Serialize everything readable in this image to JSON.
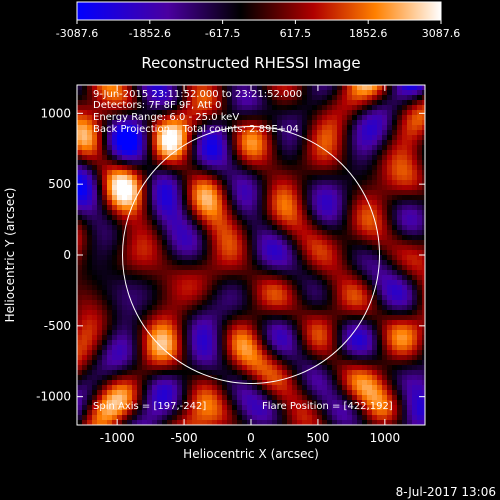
{
  "chart_data": {
    "type": "heatmap",
    "title": "Reconstructed RHESSI Image",
    "xlabel": "Heliocentric X (arcsec)",
    "ylabel": "Heliocentric Y (arcsec)",
    "xlim": [
      -1300,
      1300
    ],
    "ylim": [
      -1200,
      1200
    ],
    "xticks": [
      -1000,
      -500,
      0,
      500,
      1000
    ],
    "xtick_labels": [
      "-1000",
      "-500",
      "0",
      "500",
      "1000"
    ],
    "yticks": [
      -1000,
      -500,
      0,
      500,
      1000
    ],
    "ytick_labels": [
      "-1000",
      "-500",
      "0",
      "500",
      "1000"
    ],
    "colorbar": {
      "range": [
        -3087.6,
        3087.6
      ],
      "ticks": [
        -3087.6,
        -1852.6,
        -617.5,
        617.5,
        1852.6,
        3087.6
      ],
      "tick_labels": [
        "-3087.6",
        "-1852.6",
        "-617.5",
        "617.5",
        "1852.6",
        "3087.6"
      ]
    },
    "annotations": {
      "time_range": "9-Jun-2015 23:11:52.000 to 23:21:52.000",
      "detectors": "Detectors: 7F 8F 9F, Att 0",
      "energy_range": "Energy Range: 6.0 - 25.0 keV",
      "method_and_counts": "Back Projection    Total counts: 2.89E+04",
      "spin_axis": "Spin Axis = [197,-242]",
      "flare_position": "Flare Position = [422,192]"
    },
    "limb_circle": {
      "center": [
        0,
        0
      ],
      "radius": 960
    },
    "footer_date": "8-Jul-2017 13:06",
    "colors": {
      "background": "#000000",
      "foreground": "#ffffff",
      "colormap": [
        "#0000ff",
        "#4a00a0",
        "#000000",
        "#b00000",
        "#ff8000",
        "#ffffff"
      ]
    }
  }
}
